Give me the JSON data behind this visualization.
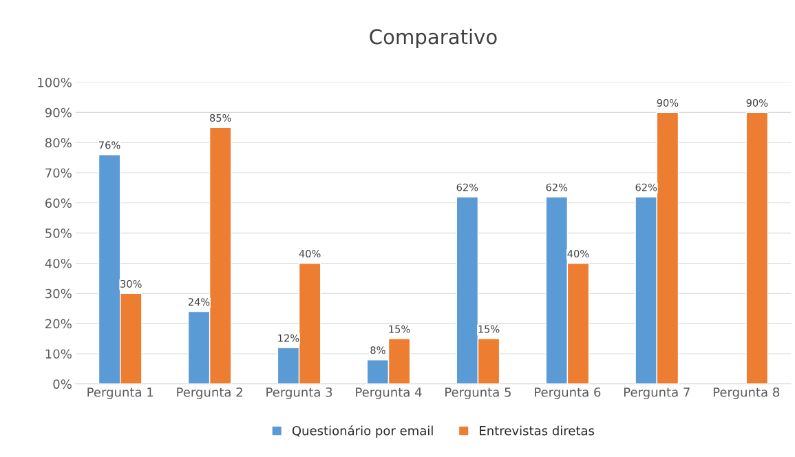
{
  "chart_data": {
    "type": "bar",
    "title": "Comparativo",
    "categories": [
      "Pergunta 1",
      "Pergunta 2",
      "Pergunta 3",
      "Pergunta 4",
      "Pergunta 5",
      "Pergunta 6",
      "Pergunta 7",
      "Pergunta 8"
    ],
    "series": [
      {
        "name": "Questionário por email",
        "color": "#5b9bd5",
        "values": [
          76,
          24,
          12,
          8,
          62,
          62,
          62,
          null
        ],
        "value_labels": [
          "76%",
          "24%",
          "12%",
          "8%",
          "62%",
          "62%",
          "62%",
          null
        ]
      },
      {
        "name": "Entrevistas diretas",
        "color": "#ed7d31",
        "values": [
          30,
          85,
          40,
          15,
          15,
          40,
          90,
          90
        ],
        "value_labels": [
          "30%",
          "85%",
          "40%",
          "15%",
          "15%",
          "40%",
          "90%",
          "90%"
        ]
      }
    ],
    "ylim": [
      0,
      100
    ],
    "yticks": [
      {
        "value": 0,
        "label": "0%"
      },
      {
        "value": 10,
        "label": "10%"
      },
      {
        "value": 20,
        "label": "20%"
      },
      {
        "value": 30,
        "label": "30%"
      },
      {
        "value": 40,
        "label": "40%"
      },
      {
        "value": 50,
        "label": "50%"
      },
      {
        "value": 60,
        "label": "60%"
      },
      {
        "value": 70,
        "label": "70%"
      },
      {
        "value": 80,
        "label": "80%"
      },
      {
        "value": 90,
        "label": "90%"
      },
      {
        "value": 100,
        "label": "100%"
      }
    ],
    "grid": "y",
    "legend": "bottom"
  }
}
